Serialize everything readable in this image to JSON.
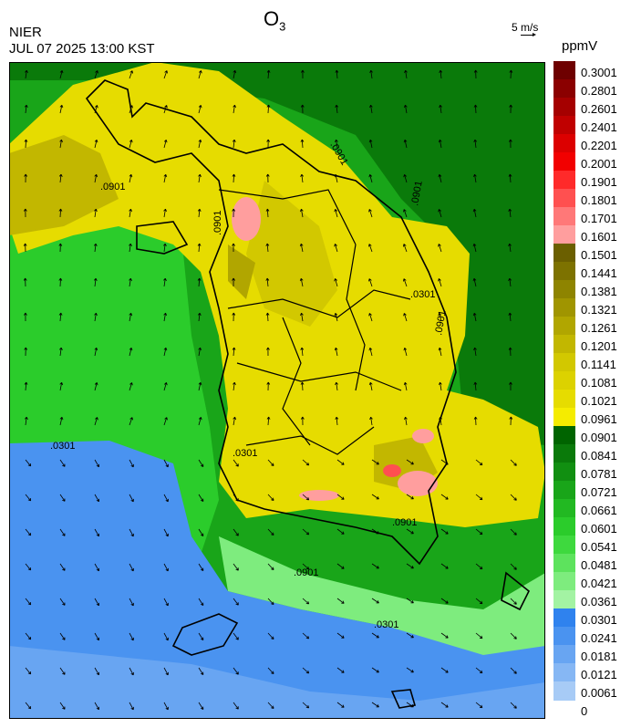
{
  "header": {
    "title_main": "O",
    "title_sub": "3",
    "source": "NIER",
    "datetime": "JUL 07 2025 13:00 KST",
    "wind_scale_label": "5 m/s",
    "unit": "ppmV"
  },
  "map": {
    "contour_labels": [
      ".0301",
      ".0301",
      ".0901",
      ".0901",
      ".0301",
      ".0301",
      ".0901",
      ".0901",
      ".0901",
      ".0901",
      ".0901"
    ]
  },
  "legend": {
    "labels": [
      "0.3001",
      "0.2801",
      "0.2601",
      "0.2401",
      "0.2201",
      "0.2001",
      "0.1901",
      "0.1801",
      "0.1701",
      "0.1601",
      "0.1501",
      "0.1441",
      "0.1381",
      "0.1321",
      "0.1261",
      "0.1201",
      "0.1141",
      "0.1081",
      "0.1021",
      "0.0961",
      "0.0901",
      "0.0841",
      "0.0781",
      "0.0721",
      "0.0661",
      "0.0601",
      "0.0541",
      "0.0481",
      "0.0421",
      "0.0361",
      "0.0301",
      "0.0241",
      "0.0181",
      "0.0121",
      "0.0061",
      "0"
    ],
    "colors": [
      "#6e0000",
      "#8b0000",
      "#a50000",
      "#c00000",
      "#dc0000",
      "#f20000",
      "#ff2a2a",
      "#ff5050",
      "#ff7878",
      "#ff9e9e",
      "#6b5f00",
      "#7d7200",
      "#8e8400",
      "#a09500",
      "#b1a600",
      "#c2b700",
      "#d2c800",
      "#dcd200",
      "#e6dc00",
      "#f5ec00",
      "#006400",
      "#0a7a0a",
      "#118f11",
      "#19a519",
      "#22b922",
      "#2bcc2b",
      "#3ed93e",
      "#5de35d",
      "#7eec7e",
      "#a3f3a3",
      "#2f82ee",
      "#4a93f0",
      "#68a5f2",
      "#86b7f4",
      "#a7cbf6"
    ]
  }
}
